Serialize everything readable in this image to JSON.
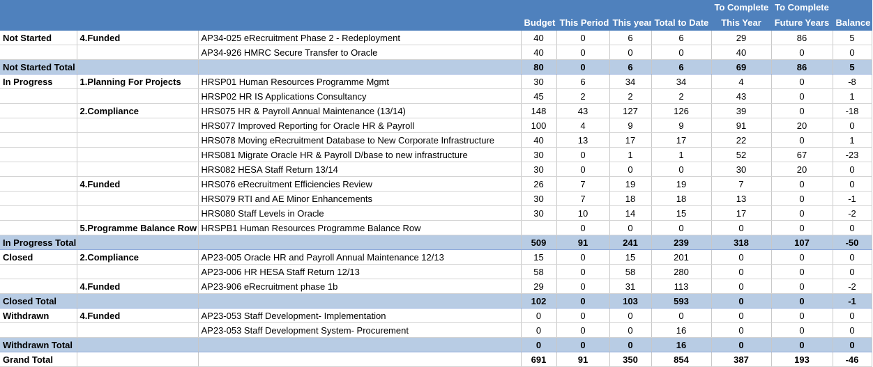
{
  "headers": {
    "top": [
      "",
      "",
      "",
      "",
      "",
      "",
      "",
      "To Complete",
      "To Complete",
      ""
    ],
    "bottom": [
      "",
      "",
      "",
      "Budget",
      "This Period",
      "This year",
      "Total to Date",
      "This Year",
      "Future Years",
      "Balance"
    ]
  },
  "rows": [
    {
      "type": "item",
      "status": "Not Started",
      "category": "4.Funded",
      "project": "AP34-025 eRecruitment Phase 2 - Redeployment",
      "values": [
        "40",
        "0",
        "6",
        "6",
        "29",
        "86",
        "5"
      ]
    },
    {
      "type": "item",
      "status": "",
      "category": "",
      "project": "AP34-926 HMRC Secure Transfer to Oracle",
      "values": [
        "40",
        "0",
        "0",
        "0",
        "40",
        "0",
        "0"
      ]
    },
    {
      "type": "total",
      "status": "Not Started Total",
      "category": "",
      "project": "",
      "values": [
        "80",
        "0",
        "6",
        "6",
        "69",
        "86",
        "5"
      ]
    },
    {
      "type": "item",
      "status": "In Progress",
      "category": "1.Planning For Projects",
      "project": "HRSP01 Human Resources Programme Mgmt",
      "values": [
        "30",
        "6",
        "34",
        "34",
        "4",
        "0",
        "-8"
      ]
    },
    {
      "type": "item",
      "status": "",
      "category": "",
      "project": "HRSP02 HR IS Applications Consultancy",
      "values": [
        "45",
        "2",
        "2",
        "2",
        "43",
        "0",
        "1"
      ]
    },
    {
      "type": "item",
      "status": "",
      "category": "2.Compliance",
      "project": "HRS075 HR & Payroll Annual Maintenance (13/14)",
      "values": [
        "148",
        "43",
        "127",
        "126",
        "39",
        "0",
        "-18"
      ]
    },
    {
      "type": "item",
      "status": "",
      "category": "",
      "project": "HRS077 Improved Reporting for Oracle HR & Payroll",
      "values": [
        "100",
        "4",
        "9",
        "9",
        "91",
        "20",
        "0"
      ]
    },
    {
      "type": "item",
      "status": "",
      "category": "",
      "project": "HRS078 Moving eRecruitment Database to New Corporate Infrastructure",
      "values": [
        "40",
        "13",
        "17",
        "17",
        "22",
        "0",
        "1"
      ]
    },
    {
      "type": "item",
      "status": "",
      "category": "",
      "project": "HRS081 Migrate Oracle HR & Payroll D/base to new infrastructure",
      "values": [
        "30",
        "0",
        "1",
        "1",
        "52",
        "67",
        "-23"
      ]
    },
    {
      "type": "item",
      "status": "",
      "category": "",
      "project": "HRS082 HESA Staff Return 13/14",
      "values": [
        "30",
        "0",
        "0",
        "0",
        "30",
        "20",
        "0"
      ]
    },
    {
      "type": "item",
      "status": "",
      "category": "4.Funded",
      "project": "HRS076 eRecruitment Efficiencies Review",
      "values": [
        "26",
        "7",
        "19",
        "19",
        "7",
        "0",
        "0"
      ]
    },
    {
      "type": "item",
      "status": "",
      "category": "",
      "project": "HRS079 RTI and AE Minor Enhancements",
      "values": [
        "30",
        "7",
        "18",
        "18",
        "13",
        "0",
        "-1"
      ]
    },
    {
      "type": "item",
      "status": "",
      "category": "",
      "project": "HRS080 Staff Levels in Oracle",
      "values": [
        "30",
        "10",
        "14",
        "15",
        "17",
        "0",
        "-2"
      ]
    },
    {
      "type": "item",
      "status": "",
      "category": "5.Programme Balance Row",
      "project": "HRSPB1 Human Resources Programme Balance Row",
      "values": [
        "",
        "0",
        "0",
        "0",
        "0",
        "0",
        "0"
      ]
    },
    {
      "type": "total",
      "status": "In Progress Total",
      "category": "",
      "project": "",
      "values": [
        "509",
        "91",
        "241",
        "239",
        "318",
        "107",
        "-50"
      ]
    },
    {
      "type": "item",
      "status": "Closed",
      "category": "2.Compliance",
      "project": "AP23-005 Oracle HR and Payroll Annual Maintenance 12/13",
      "values": [
        "15",
        "0",
        "15",
        "201",
        "0",
        "0",
        "0"
      ]
    },
    {
      "type": "item",
      "status": "",
      "category": "",
      "project": "AP23-006 HR HESA Staff Return 12/13",
      "values": [
        "58",
        "0",
        "58",
        "280",
        "0",
        "0",
        "0"
      ]
    },
    {
      "type": "item",
      "status": "",
      "category": "4.Funded",
      "project": "AP23-906 eRecruitment phase 1b",
      "values": [
        "29",
        "0",
        "31",
        "113",
        "0",
        "0",
        "-2"
      ]
    },
    {
      "type": "total",
      "status": "Closed Total",
      "category": "",
      "project": "",
      "values": [
        "102",
        "0",
        "103",
        "593",
        "0",
        "0",
        "-1"
      ]
    },
    {
      "type": "item",
      "status": "Withdrawn",
      "category": "4.Funded",
      "project": "AP23-053 Staff Development- Implementation",
      "values": [
        "0",
        "0",
        "0",
        "0",
        "0",
        "0",
        "0"
      ]
    },
    {
      "type": "item",
      "status": "",
      "category": "",
      "project": "AP23-053 Staff Development System- Procurement",
      "values": [
        "0",
        "0",
        "0",
        "16",
        "0",
        "0",
        "0"
      ]
    },
    {
      "type": "total",
      "status": "Withdrawn Total",
      "category": "",
      "project": "",
      "values": [
        "0",
        "0",
        "0",
        "16",
        "0",
        "0",
        "0"
      ]
    },
    {
      "type": "grand",
      "status": "Grand Total",
      "category": "",
      "project": "",
      "values": [
        "691",
        "91",
        "350",
        "854",
        "387",
        "193",
        "-46"
      ]
    }
  ]
}
